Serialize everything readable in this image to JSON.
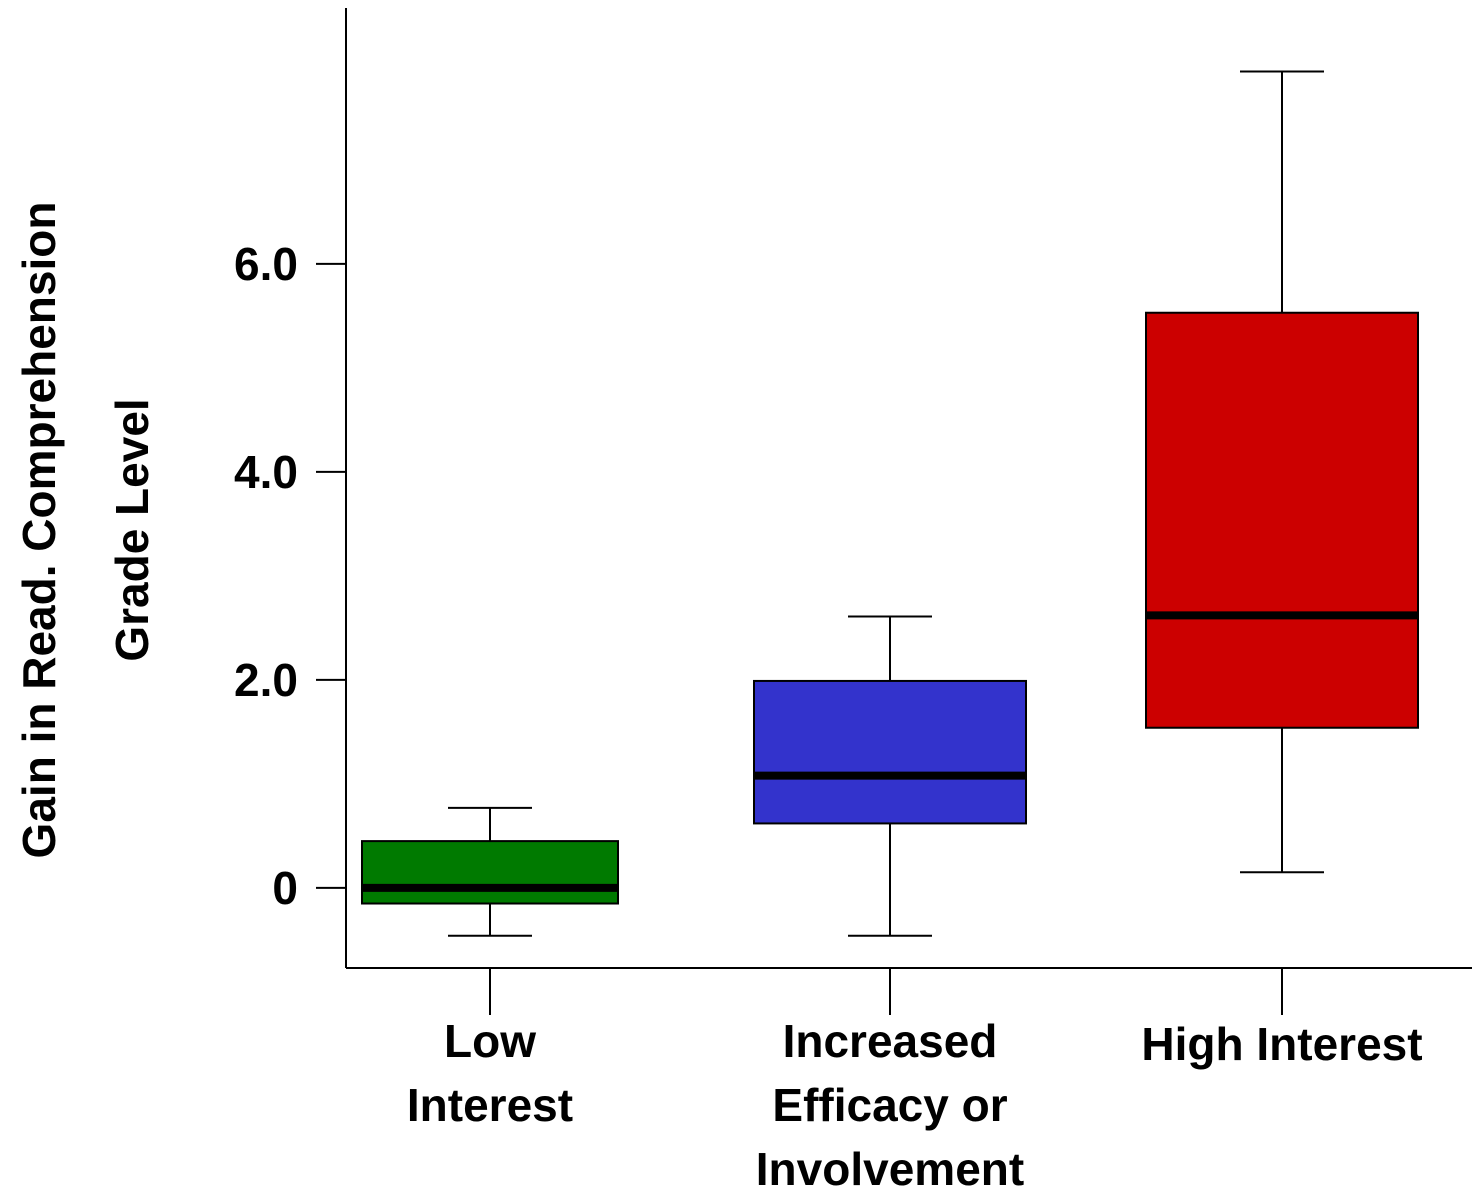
{
  "chart_data": {
    "type": "box",
    "y_label": [
      "Gain in Read. Comprehension",
      "Grade Level"
    ],
    "categories": [
      [
        "Low",
        "Interest"
      ],
      [
        "Increased",
        "Efficacy or",
        "Involvement"
      ],
      [
        "High Interest"
      ]
    ],
    "boxes": [
      {
        "min": -0.46,
        "q1": -0.15,
        "median": 0,
        "q3": 0.45,
        "max": 0.77,
        "color": "#007a00"
      },
      {
        "min": -0.46,
        "q1": 0.62,
        "median": 1.08,
        "q3": 1.99,
        "max": 2.61,
        "color": "#3333cc"
      },
      {
        "min": 0.15,
        "q1": 1.54,
        "median": 2.62,
        "q3": 5.53,
        "max": 7.85,
        "color": "#cc0000"
      }
    ],
    "ylim": [
      -0.77,
      8.46
    ],
    "yticks": [
      0,
      {
        "value": 2,
        "label": "2.0"
      },
      {
        "value": 4,
        "label": "4.0"
      },
      {
        "value": 6,
        "label": "6.0"
      }
    ]
  }
}
